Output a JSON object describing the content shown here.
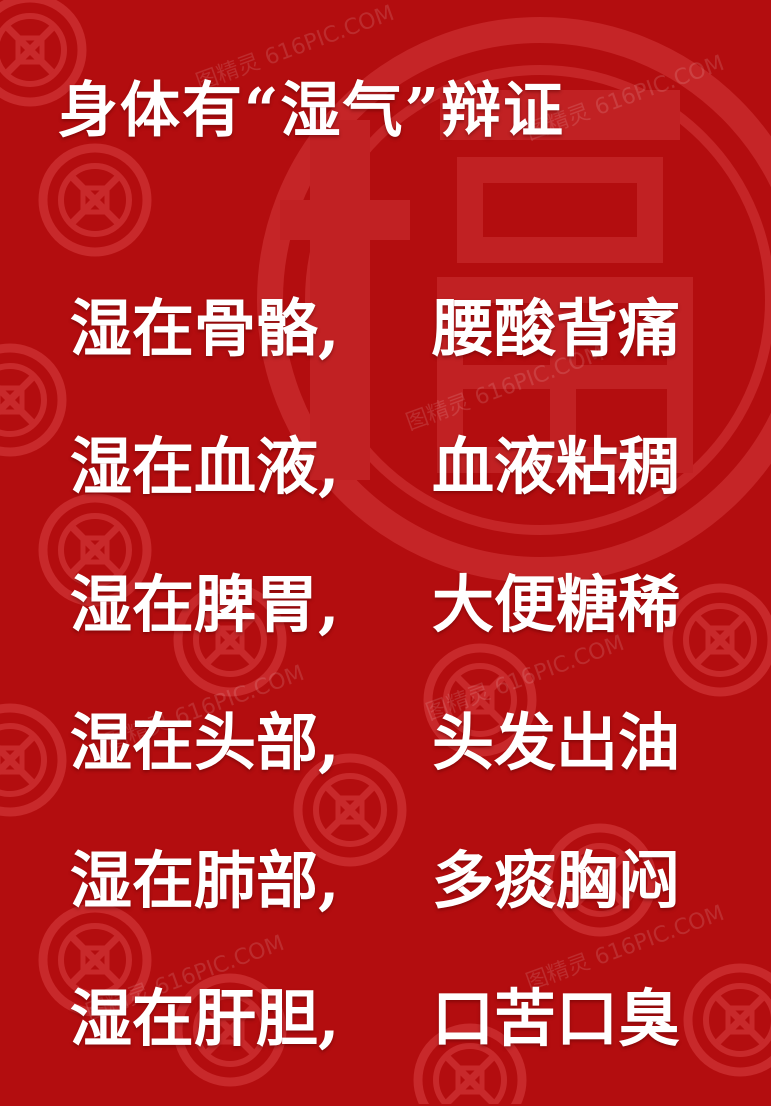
{
  "title": "身体有“湿气”辩证",
  "lines": [
    {
      "left": "湿在骨骼,",
      "right": "腰酸背痛"
    },
    {
      "left": "湿在血液,",
      "right": "血液粘稠"
    },
    {
      "left": "湿在脾胃,",
      "right": "大便糖稀"
    },
    {
      "left": "湿在头部,",
      "right": "头发出油"
    },
    {
      "left": "湿在肺部,",
      "right": "多痰胸闷"
    },
    {
      "left": "湿在肝胆,",
      "right": "口苦口臭"
    }
  ],
  "watermark": "图精灵 616PIC.COM",
  "colors": {
    "background": "#b30d0f",
    "pattern": "#c92a2c",
    "text": "#ffffff"
  },
  "background_icons": [
    "fu-character-seal",
    "round-lattice-medallion"
  ]
}
